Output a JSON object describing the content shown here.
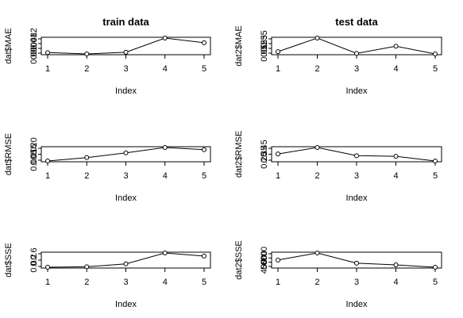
{
  "chart_data": [
    {
      "type": "line",
      "title": "train data",
      "xlabel": "Index",
      "ylabel": "dat$MAE",
      "x": [
        1,
        2,
        3,
        4,
        5
      ],
      "xticks": [
        "1",
        "2",
        "3",
        "4",
        "5"
      ],
      "values": [
        0.0015,
        0.0004,
        0.0018,
        0.0137,
        0.0098
      ],
      "yticks": [
        "0.000",
        "0.004",
        "0.008",
        "0.012"
      ],
      "ylim": [
        0.0004,
        0.0137
      ]
    },
    {
      "type": "line",
      "title": "test data",
      "xlabel": "Index",
      "ylabel": "dat2$MAE",
      "x": [
        1,
        2,
        3,
        4,
        5
      ],
      "xticks": [
        "1",
        "2",
        "3",
        "4",
        "5"
      ],
      "values": [
        0.09,
        0.39,
        0.05,
        0.21,
        0.04
      ],
      "yticks": [
        "0.05",
        "0.15",
        "0.25",
        "0.35"
      ],
      "ylim": [
        0.04,
        0.39
      ]
    },
    {
      "type": "line",
      "title": "",
      "xlabel": "Index",
      "ylabel": "dat$RMSE",
      "x": [
        1,
        2,
        3,
        4,
        5
      ],
      "xticks": [
        "1",
        "2",
        "3",
        "4",
        "5"
      ],
      "values": [
        0.0004,
        0.0063,
        0.0143,
        0.0235,
        0.0197
      ],
      "yticks": [
        "0.005",
        "0.015",
        "0.020"
      ],
      "ylim": [
        0.0004,
        0.0235
      ]
    },
    {
      "type": "line",
      "title": "",
      "xlabel": "Index",
      "ylabel": "dat2$RMSE",
      "x": [
        1,
        2,
        3,
        4,
        5
      ],
      "xticks": [
        "1",
        "2",
        "3",
        "4",
        "5"
      ],
      "values": [
        0.34,
        0.45,
        0.31,
        0.3,
        0.22
      ],
      "yticks": [
        "0.25",
        "0.35",
        "0.45"
      ],
      "ylim": [
        0.22,
        0.45
      ]
    },
    {
      "type": "line",
      "title": "",
      "xlabel": "Index",
      "ylabel": "dat$SSE",
      "x": [
        1,
        2,
        3,
        4,
        5
      ],
      "xticks": [
        "1",
        "2",
        "3",
        "4",
        "5"
      ],
      "values": [
        0.01,
        0.04,
        0.22,
        0.88,
        0.69
      ],
      "yticks": [
        "0.0",
        "0.2",
        "0.6"
      ],
      "ylim": [
        0.01,
        0.88
      ]
    },
    {
      "type": "line",
      "title": "",
      "xlabel": "Index",
      "ylabel": "dat2$SSE",
      "x": [
        1,
        2,
        3,
        4,
        5
      ],
      "xticks": [
        "1",
        "2",
        "3",
        "4",
        "5"
      ],
      "values": [
        540,
        700,
        470,
        432,
        378
      ],
      "yticks": [
        "400",
        "500",
        "600",
        "700"
      ],
      "ylim": [
        378,
        700
      ]
    }
  ]
}
